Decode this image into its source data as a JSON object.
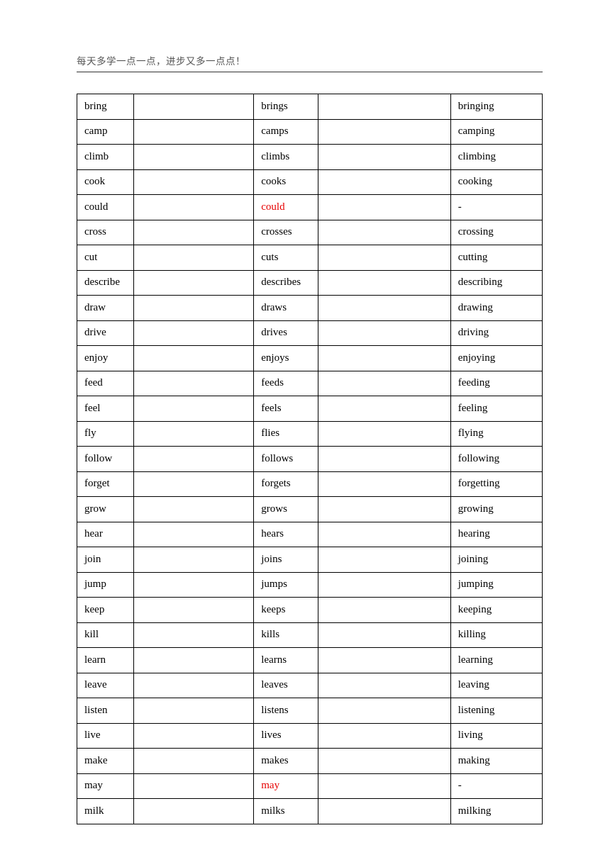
{
  "header": "每天多学一点一点，进步又多一点点！",
  "columns": [
    "base",
    "blank1",
    "third",
    "blank2",
    "gerund"
  ],
  "rows": [
    {
      "base": "bring",
      "third": "brings",
      "gerund": "bringing",
      "redThird": false
    },
    {
      "base": "camp",
      "third": "camps",
      "gerund": "camping",
      "redThird": false
    },
    {
      "base": "climb",
      "third": "climbs",
      "gerund": "climbing",
      "redThird": false
    },
    {
      "base": "cook",
      "third": "cooks",
      "gerund": "cooking",
      "redThird": false
    },
    {
      "base": "could",
      "third": "could",
      "gerund": "-",
      "redThird": true
    },
    {
      "base": "cross",
      "third": "crosses",
      "gerund": "crossing",
      "redThird": false
    },
    {
      "base": "cut",
      "third": "cuts",
      "gerund": "cutting",
      "redThird": false
    },
    {
      "base": "describe",
      "third": "describes",
      "gerund": "describing",
      "redThird": false
    },
    {
      "base": "draw",
      "third": "draws",
      "gerund": "drawing",
      "redThird": false
    },
    {
      "base": "drive",
      "third": "drives",
      "gerund": "driving",
      "redThird": false
    },
    {
      "base": "enjoy",
      "third": "enjoys",
      "gerund": "enjoying",
      "redThird": false
    },
    {
      "base": "feed",
      "third": "feeds",
      "gerund": "feeding",
      "redThird": false
    },
    {
      "base": "feel",
      "third": "feels",
      "gerund": "feeling",
      "redThird": false
    },
    {
      "base": "fly",
      "third": "flies",
      "gerund": "flying",
      "redThird": false
    },
    {
      "base": "follow",
      "third": "follows",
      "gerund": "following",
      "redThird": false
    },
    {
      "base": "forget",
      "third": "forgets",
      "gerund": "forgetting",
      "redThird": false
    },
    {
      "base": "grow",
      "third": "grows",
      "gerund": "growing",
      "redThird": false
    },
    {
      "base": "hear",
      "third": "hears",
      "gerund": "hearing",
      "redThird": false
    },
    {
      "base": "join",
      "third": "joins",
      "gerund": "joining",
      "redThird": false
    },
    {
      "base": "jump",
      "third": "jumps",
      "gerund": "jumping",
      "redThird": false
    },
    {
      "base": "keep",
      "third": "keeps",
      "gerund": "keeping",
      "redThird": false
    },
    {
      "base": "kill",
      "third": "kills",
      "gerund": "killing",
      "redThird": false
    },
    {
      "base": "learn",
      "third": "learns",
      "gerund": "learning",
      "redThird": false
    },
    {
      "base": "leave",
      "third": "leaves",
      "gerund": "leaving",
      "redThird": false
    },
    {
      "base": "listen",
      "third": "listens",
      "gerund": "listening",
      "redThird": false
    },
    {
      "base": "live",
      "third": "lives",
      "gerund": "living",
      "redThird": false
    },
    {
      "base": "make",
      "third": "makes",
      "gerund": "making",
      "redThird": false
    },
    {
      "base": "may",
      "third": "may",
      "gerund": "-",
      "redThird": true
    },
    {
      "base": "milk",
      "third": "milks",
      "gerund": "milking",
      "redThird": false
    }
  ]
}
